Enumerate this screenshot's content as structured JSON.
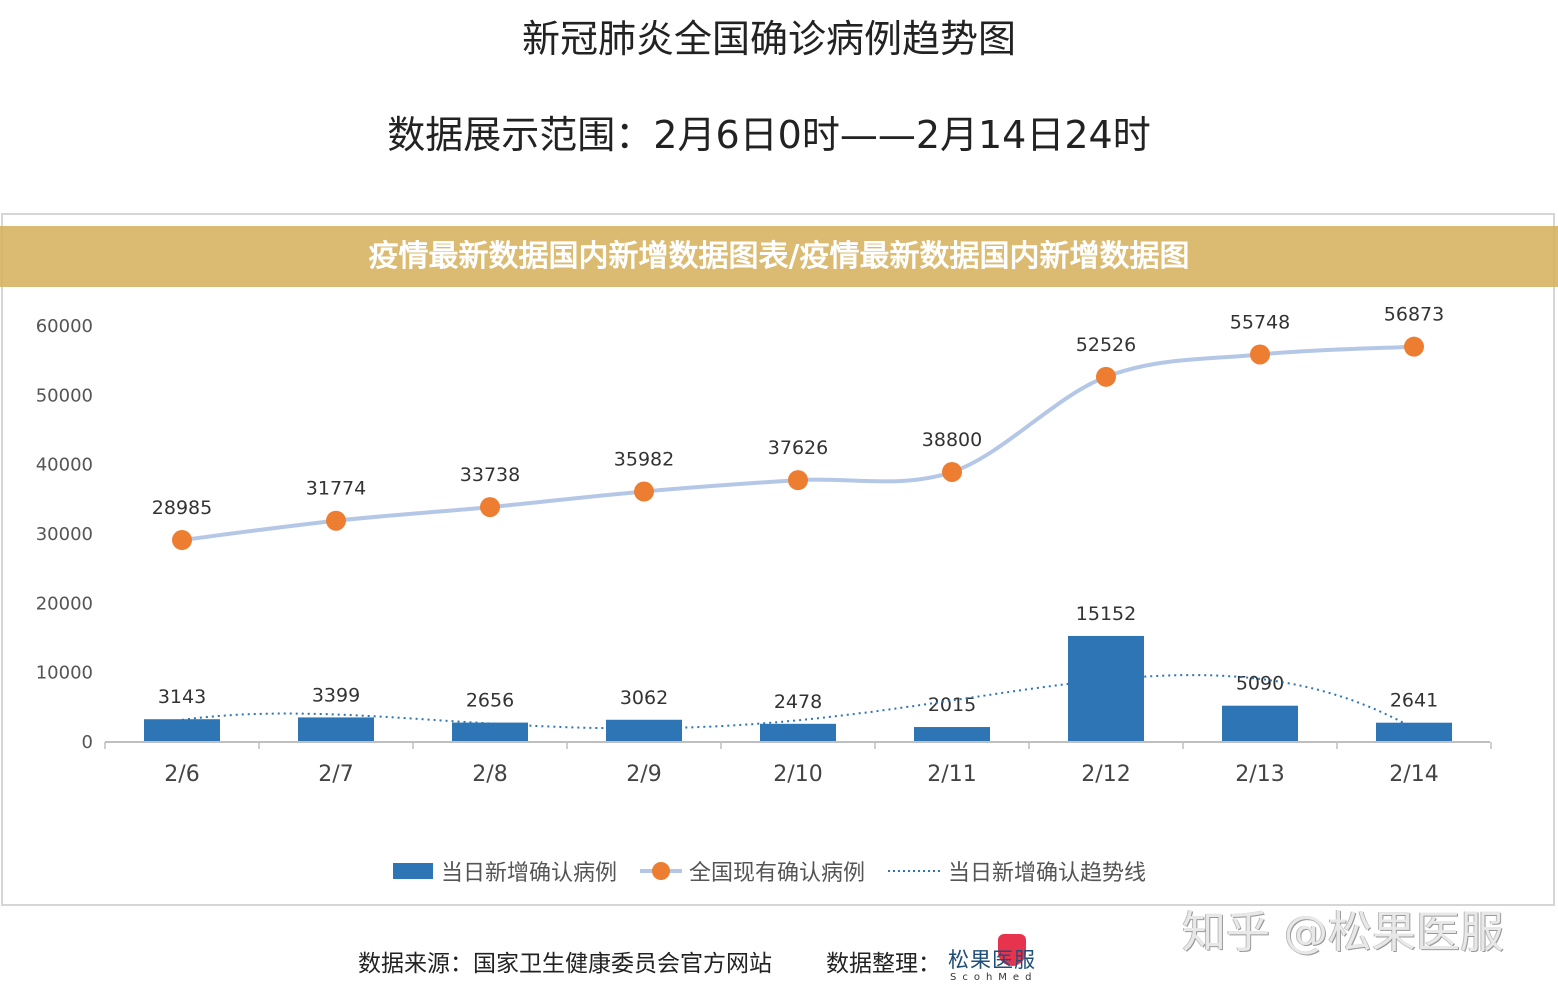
{
  "header": {
    "title": "新冠肺炎全国确诊病例趋势图",
    "subtitle": "数据展示范围：2月6日0时——2月14日24时"
  },
  "chart_data": {
    "type": "bar+line",
    "categories": [
      "2/6",
      "2/7",
      "2/8",
      "2/9",
      "2/10",
      "2/11",
      "2/12",
      "2/13",
      "2/14"
    ],
    "ylim": [
      0,
      60000
    ],
    "yticks": [
      "0",
      "10000",
      "20000",
      "30000",
      "40000",
      "50000",
      "60000"
    ],
    "grid": false,
    "legend_placement": "bottom",
    "series": [
      {
        "name": "当日新增确认病例",
        "type": "bar",
        "color": "#2e75b6",
        "values": [
          3143,
          3399,
          2656,
          3062,
          2478,
          2015,
          15152,
          5090,
          2641
        ]
      },
      {
        "name": "全国现有确认病例",
        "type": "line",
        "color": "#b4c7e7",
        "marker_color": "#ed7d31",
        "values": [
          28985,
          31774,
          33738,
          35982,
          37626,
          38800,
          52526,
          55748,
          56873
        ]
      },
      {
        "name": "当日新增确认趋势线",
        "type": "trendline",
        "style": "dotted",
        "color": "#2e75b6"
      }
    ]
  },
  "banner": {
    "text": "疫情最新数据国内新增数据图表/疫情最新数据国内新增数据图"
  },
  "footer": {
    "source": "数据来源：国家卫生健康委员会官方网站",
    "compiled": "数据整理：",
    "logo_cn": "松果医服",
    "logo_en": "ScohMed",
    "watermark": "知乎 @松果医服"
  }
}
